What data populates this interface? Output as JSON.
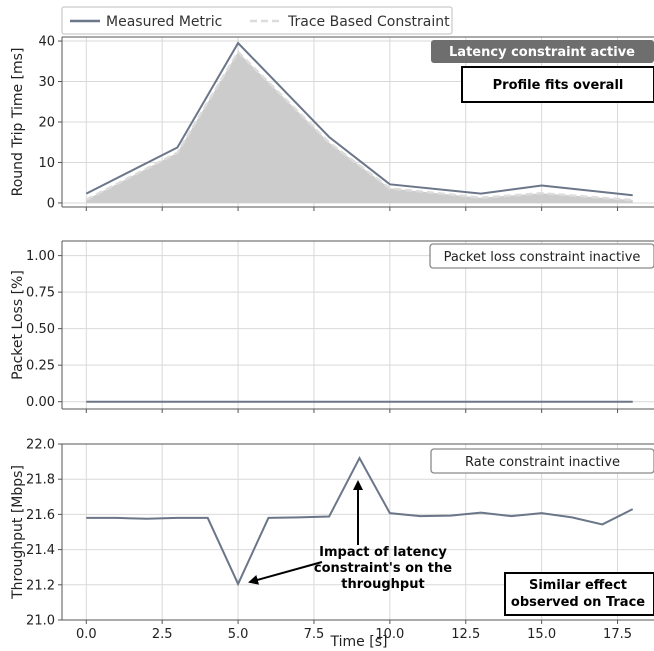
{
  "legend": {
    "measured": "Measured Metric",
    "trace": "Trace Based Constraint"
  },
  "colors": {
    "measured_line": "#6b7689",
    "trace_line": "#dcdcdc",
    "trace_fill": "#cccccc",
    "grid": "#d9d9d9",
    "active_badge_bg": "#6e6e6e",
    "inactive_badge_border": "#8a8a8a"
  },
  "xlabel": "Time [s]",
  "xticks": [
    "0.0",
    "2.5",
    "5.0",
    "7.5",
    "10.0",
    "12.5",
    "15.0",
    "17.5"
  ],
  "chart_data": [
    {
      "type": "area",
      "panel": "latency",
      "ylabel": "Round Trip Time [ms]",
      "xlim": [
        -0.8,
        18.8
      ],
      "ylim": [
        -1,
        41
      ],
      "yticks": [
        "0",
        "10",
        "20",
        "30",
        "40"
      ],
      "series": [
        {
          "name": "Measured Metric",
          "style": "line",
          "x": [
            0,
            3,
            5,
            8,
            10,
            13,
            15,
            18
          ],
          "y": [
            2.3,
            13.7,
            39.5,
            16.3,
            4.6,
            2.3,
            4.3,
            1.9
          ]
        },
        {
          "name": "Trace Based Constraint",
          "style": "dashed-fill",
          "x": [
            0,
            3,
            5,
            8,
            10,
            13,
            15,
            18
          ],
          "y": [
            0.8,
            12.4,
            37.3,
            14.9,
            3.6,
            1.3,
            2.4,
            0.7
          ]
        }
      ],
      "badge": {
        "text": "Latency constraint active",
        "state": "active"
      },
      "annotation": "Profile fits overall"
    },
    {
      "type": "line",
      "panel": "loss",
      "ylabel": "Packet Loss [%]",
      "xlim": [
        -0.8,
        18.8
      ],
      "ylim": [
        -0.05,
        1.1
      ],
      "yticks": [
        "0.00",
        "0.25",
        "0.50",
        "0.75",
        "1.00"
      ],
      "series": [
        {
          "name": "Measured Metric",
          "style": "line",
          "x": [
            0,
            18
          ],
          "y": [
            0,
            0
          ]
        }
      ],
      "badge": {
        "text": "Packet loss constraint inactive",
        "state": "inactive"
      }
    },
    {
      "type": "line",
      "panel": "throughput",
      "ylabel": "Throughput [Mbps]",
      "xlim": [
        -0.8,
        18.8
      ],
      "ylim": [
        21.0,
        22.0
      ],
      "yticks": [
        "21.0",
        "21.2",
        "21.4",
        "21.6",
        "21.8",
        "22.0"
      ],
      "series": [
        {
          "name": "Measured Metric",
          "style": "line",
          "x": [
            0,
            1,
            2,
            3,
            4,
            5,
            6,
            7,
            8,
            9,
            10,
            11,
            12,
            13,
            14,
            15,
            16,
            17,
            18
          ],
          "y": [
            21.58,
            21.58,
            21.575,
            21.58,
            21.58,
            21.205,
            21.58,
            21.583,
            21.588,
            21.92,
            21.607,
            21.59,
            21.593,
            21.61,
            21.59,
            21.607,
            21.583,
            21.543,
            21.63
          ]
        }
      ],
      "badge": {
        "text": "Rate constraint inactive",
        "state": "inactive"
      },
      "annotation_impact": [
        "Impact of latency",
        "constraint's on the",
        "throughput"
      ],
      "annotation_box": [
        "Similar effect",
        "observed on Trace"
      ]
    }
  ]
}
